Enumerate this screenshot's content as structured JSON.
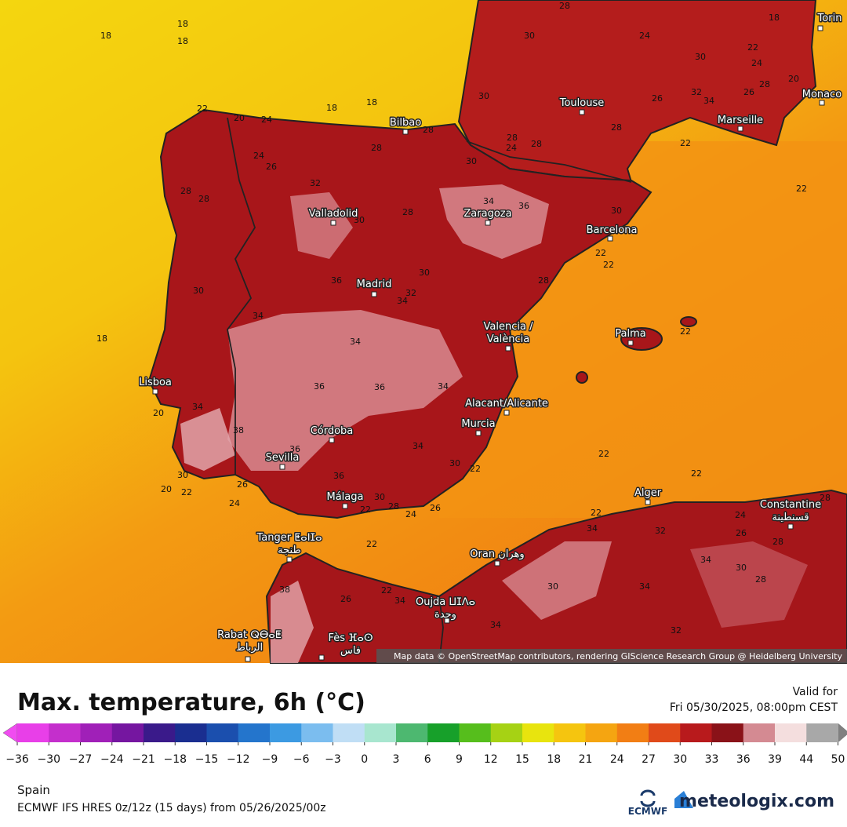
{
  "map": {
    "cities": [
      {
        "lines": [
          "Toulouse"
        ]
      },
      {
        "lines": [
          "Marseille"
        ]
      },
      {
        "lines": [
          "Monaco"
        ]
      },
      {
        "lines": [
          "Torin"
        ]
      },
      {
        "lines": [
          "Bilbao"
        ]
      },
      {
        "lines": [
          "Valladolid"
        ]
      },
      {
        "lines": [
          "Zaragoza"
        ]
      },
      {
        "lines": [
          "Barcelona"
        ]
      },
      {
        "lines": [
          "Madrid"
        ]
      },
      {
        "lines": [
          "Palma"
        ]
      },
      {
        "lines": [
          "Valencia /",
          "València"
        ]
      },
      {
        "lines": [
          "Lisboa"
        ]
      },
      {
        "lines": [
          "Alacant/Alicante"
        ]
      },
      {
        "lines": [
          "Murcia"
        ]
      },
      {
        "lines": [
          "Córdoba"
        ]
      },
      {
        "lines": [
          "Sevilla"
        ]
      },
      {
        "lines": [
          "Málaga"
        ]
      },
      {
        "lines": [
          "Tanger ⵟⴰⵏⵊⴰ",
          "طنجة"
        ]
      },
      {
        "lines": [
          "Oran وهران"
        ]
      },
      {
        "lines": [
          "Alger"
        ]
      },
      {
        "lines": [
          "Constantine",
          "قسنطينة"
        ]
      },
      {
        "lines": [
          "Oujda ⵡⵊⴷⴰ",
          "وجدة"
        ]
      },
      {
        "lines": [
          "Rabat ⵕⴱⴰⵟ",
          "الرباط"
        ]
      },
      {
        "lines": [
          "Fès ⴼⴰⵙ",
          "فاس"
        ]
      }
    ],
    "contour_labels": [
      18,
      18,
      18,
      28,
      30,
      24,
      18,
      22,
      24,
      30,
      20,
      28,
      26,
      26,
      32,
      34,
      30,
      18,
      18,
      22,
      20,
      24,
      28,
      28,
      28,
      24,
      30,
      28,
      24,
      26,
      22,
      22,
      28,
      28,
      28,
      32,
      28,
      30,
      34,
      36,
      30,
      22,
      22,
      30,
      30,
      36,
      34,
      32,
      28,
      18,
      34,
      34,
      22,
      36,
      36,
      34,
      34,
      20,
      38,
      36,
      22,
      22,
      22,
      34,
      30,
      36,
      20,
      22,
      30,
      26,
      24,
      22,
      28,
      24,
      26,
      30,
      22,
      22,
      24,
      26,
      28,
      28,
      32,
      34,
      34,
      30,
      28,
      30,
      34,
      22,
      34,
      26,
      38,
      34,
      32
    ],
    "attribution": "Map data © OpenStreetMap contributors, rendering GIScience Research Group @ Heidelberg University"
  },
  "title": "Max. temperature, 6h (°C)",
  "valid_label": "Valid for",
  "valid_time": "Fri 05/30/2025, 08:00pm CEST",
  "legend": {
    "ticks": [
      {
        "value": -36,
        "label": "−36"
      },
      {
        "value": -30,
        "label": "−30"
      },
      {
        "value": -27,
        "label": "−27"
      },
      {
        "value": -24,
        "label": "−24"
      },
      {
        "value": -21,
        "label": "−21"
      },
      {
        "value": -18,
        "label": "−18"
      },
      {
        "value": -15,
        "label": "−15"
      },
      {
        "value": -12,
        "label": "−12"
      },
      {
        "value": -9,
        "label": "−9"
      },
      {
        "value": -6,
        "label": "−6"
      },
      {
        "value": -3,
        "label": "−3"
      },
      0,
      3,
      6,
      9,
      12,
      15,
      18,
      21,
      24,
      27,
      30,
      33,
      36,
      39,
      44,
      50
    ],
    "colors": [
      "#e83fe8",
      "#c42fcc",
      "#a020b8",
      "#7516a0",
      "#3a1a8a",
      "#1a2e90",
      "#1b4fae",
      "#2475cc",
      "#3c9ae2",
      "#7bbdef",
      "#c0def5",
      "#a8e6cf",
      "#4db870",
      "#17a02a",
      "#56be1c",
      "#a6d214",
      "#e8e40e",
      "#f5c50f",
      "#f5a511",
      "#f27e14",
      "#e04a1a",
      "#b81a1c",
      "#8a1218",
      "#d48a92",
      "#f4dede",
      "#a8a8a8"
    ],
    "under_color": "#f04cf0",
    "over_color": "#808080"
  },
  "region": "Spain",
  "model": "ECMWF IFS HRES 0z/12z (15 days) from 05/26/2025/00z",
  "logos": [
    "ECMWF",
    "meteologix.com"
  ]
}
